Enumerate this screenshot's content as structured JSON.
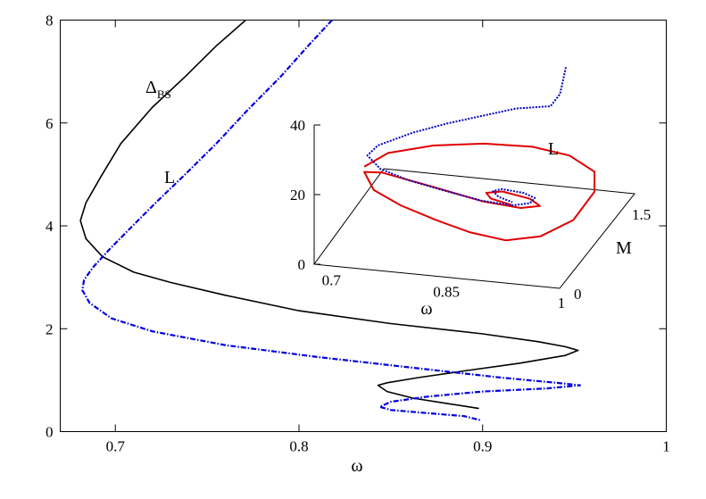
{
  "colors": {
    "delta": "#000000",
    "L": "#0000e0",
    "inset_red": "#e00000",
    "inset_blue": "#0000c0"
  },
  "chart_data": [
    {
      "type": "line",
      "xlabel": "ω",
      "ylabel": "",
      "xlim": [
        0.67,
        1.0
      ],
      "ylim": [
        0,
        8
      ],
      "xticks": [
        "0.7",
        "0.8",
        "0.9",
        "1"
      ],
      "yticks": [
        "0",
        "2",
        "4",
        "6",
        "8"
      ],
      "series": [
        {
          "name": "Δ",
          "name_sub": "BS",
          "style": "solid",
          "color": "#000000",
          "x": [
            0.771,
            0.755,
            0.738,
            0.72,
            0.703,
            0.692,
            0.684,
            0.681,
            0.684,
            0.693,
            0.71,
            0.73,
            0.76,
            0.8,
            0.85,
            0.9,
            0.93,
            0.945,
            0.952,
            0.945,
            0.92,
            0.89,
            0.865,
            0.848,
            0.843,
            0.848,
            0.862,
            0.88,
            0.898
          ],
          "y": [
            8.0,
            7.5,
            6.9,
            6.3,
            5.6,
            4.95,
            4.45,
            4.1,
            3.75,
            3.4,
            3.1,
            2.9,
            2.65,
            2.35,
            2.1,
            1.9,
            1.75,
            1.65,
            1.58,
            1.48,
            1.33,
            1.18,
            1.05,
            0.95,
            0.9,
            0.78,
            0.65,
            0.55,
            0.45
          ]
        },
        {
          "name": "L",
          "style": "dash-dot",
          "color": "#0000e0",
          "x": [
            0.818,
            0.805,
            0.79,
            0.772,
            0.755,
            0.738,
            0.722,
            0.708,
            0.697,
            0.688,
            0.683,
            0.682,
            0.686,
            0.698,
            0.72,
            0.76,
            0.81,
            0.86,
            0.91,
            0.94,
            0.953,
            0.935,
            0.9,
            0.87,
            0.85,
            0.844,
            0.85,
            0.87,
            0.89,
            0.899
          ],
          "y": [
            8.0,
            7.5,
            6.9,
            6.25,
            5.6,
            5.0,
            4.45,
            3.95,
            3.55,
            3.2,
            2.95,
            2.75,
            2.5,
            2.2,
            1.95,
            1.68,
            1.45,
            1.25,
            1.05,
            0.95,
            0.9,
            0.84,
            0.78,
            0.68,
            0.58,
            0.48,
            0.42,
            0.36,
            0.3,
            0.22
          ]
        }
      ]
    },
    {
      "type": "line",
      "inset": true,
      "projection": "3d",
      "xlabel": "ω",
      "ylabel": "M",
      "zlabel": "",
      "xlim": [
        0.68,
        1.0
      ],
      "ylim": [
        0,
        1.8
      ],
      "zlim": [
        0,
        40
      ],
      "xticks": [
        "0.7",
        "0.85",
        "1"
      ],
      "yticks": [
        "0",
        "1.5"
      ],
      "zticks": [
        "0",
        "20",
        "40"
      ],
      "series": [
        {
          "name": "L",
          "style": "dotted",
          "color": "#0000c0",
          "x": [
            0.935,
            0.93,
            0.92,
            0.88,
            0.84,
            0.8,
            0.76,
            0.72,
            0.71,
            0.73,
            0.77,
            0.82,
            0.87,
            0.91,
            0.93,
            0.93,
            0.91,
            0.88,
            0.87,
            0.88,
            0.9
          ],
          "y": [
            1.45,
            1.4,
            1.35,
            1.25,
            1.15,
            1.05,
            0.95,
            0.85,
            0.78,
            0.72,
            0.66,
            0.6,
            0.55,
            0.55,
            0.62,
            0.75,
            0.85,
            0.88,
            0.86,
            0.8,
            0.76
          ],
          "z": [
            40,
            33,
            30,
            30,
            28.5,
            27,
            25,
            22,
            20,
            17.5,
            16,
            15,
            14,
            13.5,
            13.5,
            13,
            12.5,
            12.5,
            12,
            11.5,
            11
          ]
        },
        {
          "name": "",
          "style": "solid",
          "color": "#e00000",
          "x": [
            0.71,
            0.73,
            0.78,
            0.84,
            0.9,
            0.95,
            0.99,
            1.0,
            0.99,
            0.96,
            0.92,
            0.87,
            0.82,
            0.77,
            0.73,
            0.71,
            0.73,
            0.8,
            0.87,
            0.92,
            0.94,
            0.92,
            0.88,
            0.86,
            0.87,
            0.89,
            0.9
          ],
          "y": [
            0.7,
            0.92,
            1.1,
            1.22,
            1.28,
            1.25,
            1.1,
            0.9,
            0.55,
            0.3,
            0.2,
            0.25,
            0.35,
            0.45,
            0.55,
            0.7,
            0.75,
            0.68,
            0.6,
            0.58,
            0.68,
            0.82,
            0.9,
            0.88,
            0.8,
            0.76,
            0.74
          ],
          "z": [
            18,
            19,
            19.5,
            19.5,
            19,
            18,
            16.5,
            14,
            11,
            9.5,
            9,
            9.5,
            10.5,
            12,
            14,
            16.5,
            16,
            14.5,
            13,
            12.5,
            12,
            11.5,
            11.5,
            11,
            10.8,
            10.6,
            10.5
          ]
        }
      ]
    }
  ],
  "labels": {
    "main_xlabel": "ω",
    "delta_base": "Δ",
    "delta_sub": "BS",
    "L_main": "L",
    "L_inset": "L",
    "inset_xlabel": "ω",
    "inset_ylabel": "M"
  }
}
